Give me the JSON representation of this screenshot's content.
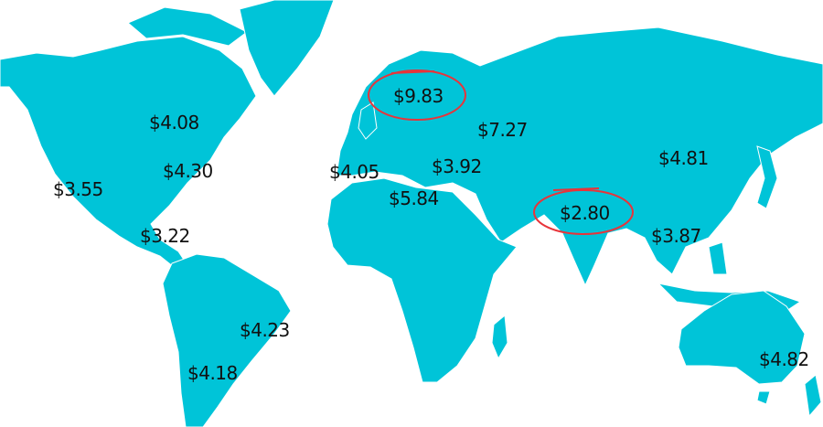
{
  "colors": {
    "land": "#00c4d8",
    "border": "#ffffff",
    "highlight": "#e8343a",
    "text": "#111111"
  },
  "prices": [
    {
      "region": "canada",
      "label": "$4.08",
      "highlighted": false
    },
    {
      "region": "eastern-us",
      "label": "$4.30",
      "highlighted": false
    },
    {
      "region": "western-us",
      "label": "$3.55",
      "highlighted": false
    },
    {
      "region": "central-america",
      "label": "$3.22",
      "highlighted": false
    },
    {
      "region": "brazil",
      "label": "$4.23",
      "highlighted": false
    },
    {
      "region": "southern-south-america",
      "label": "$4.18",
      "highlighted": false
    },
    {
      "region": "western-europe",
      "label": "$4.05",
      "highlighted": false
    },
    {
      "region": "north-africa",
      "label": "$5.84",
      "highlighted": false
    },
    {
      "region": "southern-europe",
      "label": "$3.92",
      "highlighted": false
    },
    {
      "region": "scandinavia",
      "label": "$9.83",
      "highlighted": true
    },
    {
      "region": "russia",
      "label": "$7.27",
      "highlighted": false
    },
    {
      "region": "china",
      "label": "$4.81",
      "highlighted": false
    },
    {
      "region": "india",
      "label": "$2.80",
      "highlighted": true
    },
    {
      "region": "southeast-asia",
      "label": "$3.87",
      "highlighted": false
    },
    {
      "region": "australia",
      "label": "$4.82",
      "highlighted": false
    }
  ]
}
